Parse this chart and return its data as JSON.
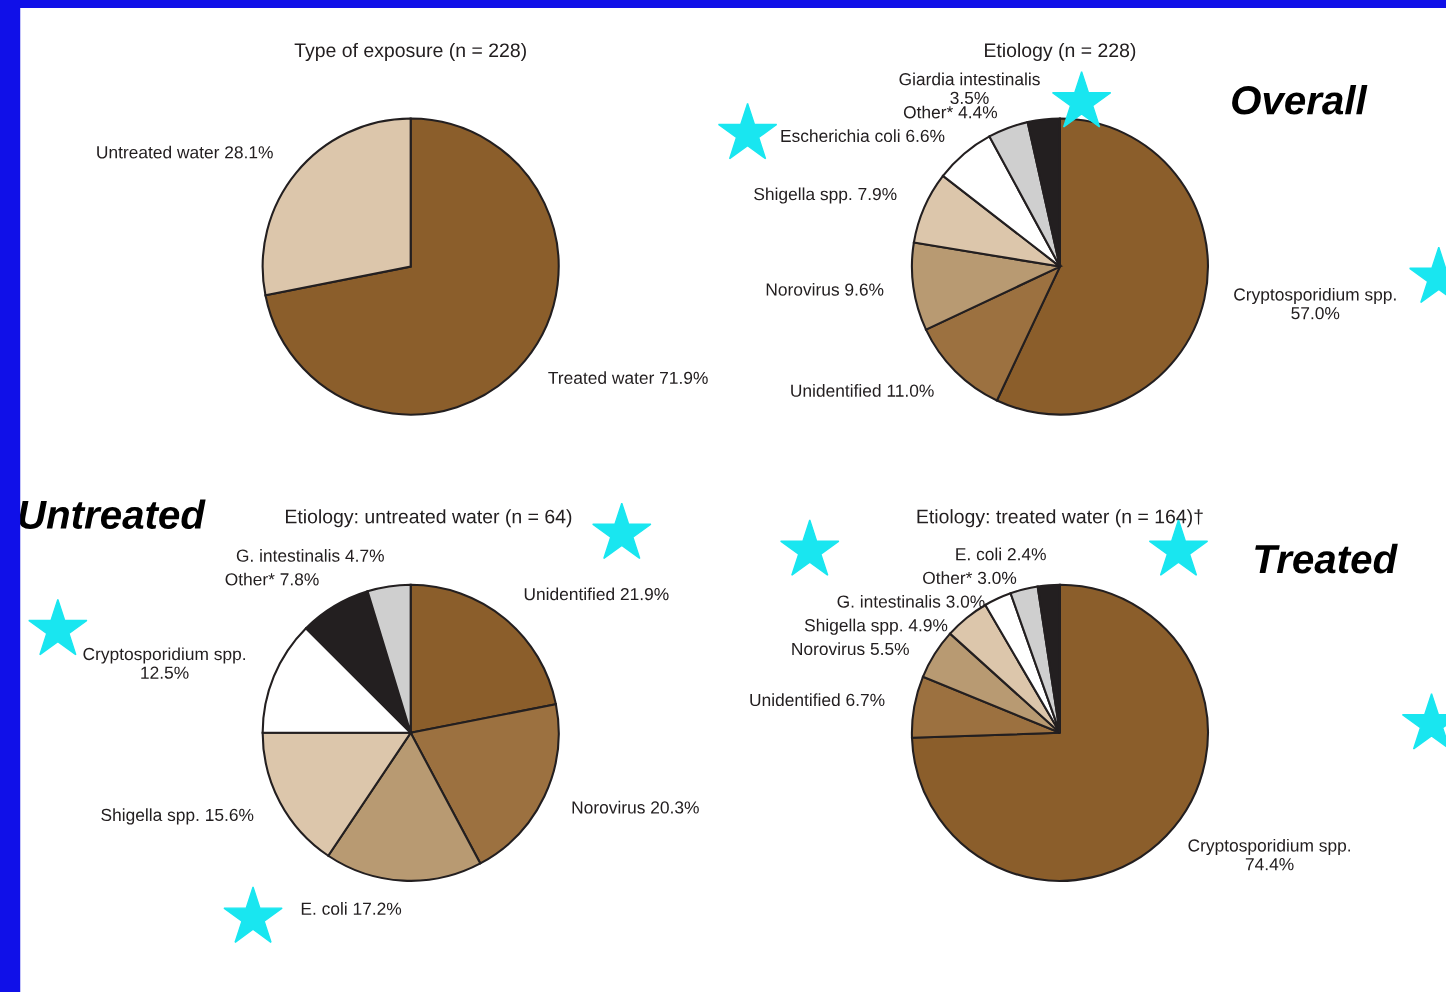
{
  "chart_data": [
    {
      "type": "pie",
      "title": "Type of exposure (n = 228)",
      "categories": [
        "Treated water",
        "Untreated water"
      ],
      "values": [
        71.9,
        28.1
      ],
      "value_labels": [
        "71.9%",
        "28.1%"
      ],
      "colors": [
        "#8b5e2b",
        "#dcc6ab"
      ]
    },
    {
      "type": "pie",
      "title": "Etiology (n = 228)",
      "categories": [
        "Cryptosporidium spp.",
        "Unidentified",
        "Norovirus",
        "Shigella spp.",
        "Escherichia coli",
        "Other*",
        "Giardia intestinalis"
      ],
      "values": [
        57.0,
        11.0,
        9.6,
        7.9,
        6.6,
        4.4,
        3.5
      ],
      "value_labels": [
        "57.0%",
        "11.0%",
        "9.6%",
        "7.9%",
        "6.6%",
        "4.4%",
        "3.5%"
      ],
      "colors": [
        "#8b5e2b",
        "#9c7140",
        "#b89a72",
        "#dcc6ab",
        "#ffffff",
        "#cfcfcf",
        "#231f20"
      ],
      "annotations": [
        "Overall"
      ]
    },
    {
      "type": "pie",
      "title": "Etiology: untreated water (n = 64)",
      "categories": [
        "Unidentified",
        "Norovirus",
        "E. coli",
        "Shigella spp.",
        "Cryptosporidium spp.",
        "Other*",
        "G. intestinalis"
      ],
      "values": [
        21.9,
        20.3,
        17.2,
        15.6,
        12.5,
        7.8,
        4.7
      ],
      "value_labels": [
        "21.9%",
        "20.3%",
        "17.2%",
        "15.6%",
        "12.5%",
        "7.8%",
        "4.7%"
      ],
      "colors": [
        "#8b5e2b",
        "#9c7140",
        "#b89a72",
        "#dcc6ab",
        "#ffffff",
        "#231f20",
        "#cfcfcf"
      ],
      "annotations": [
        "Untreated"
      ]
    },
    {
      "type": "pie",
      "title": "Etiology: treated water (n = 164)†",
      "categories": [
        "Cryptosporidium spp.",
        "Unidentified",
        "Norovirus",
        "Shigella spp.",
        "G. intestinalis",
        "Other*",
        "E. coli"
      ],
      "values": [
        74.4,
        6.7,
        5.5,
        4.9,
        3.0,
        3.0,
        2.4
      ],
      "value_labels": [
        "74.4%",
        "6.7%",
        "5.5%",
        "4.9%",
        "3.0%",
        "3.0%",
        "2.4%"
      ],
      "colors": [
        "#8b5e2b",
        "#9c7140",
        "#b89a72",
        "#dcc6ab",
        "#ffffff",
        "#cfcfcf",
        "#231f20"
      ],
      "annotations": [
        "Treated"
      ]
    }
  ]
}
